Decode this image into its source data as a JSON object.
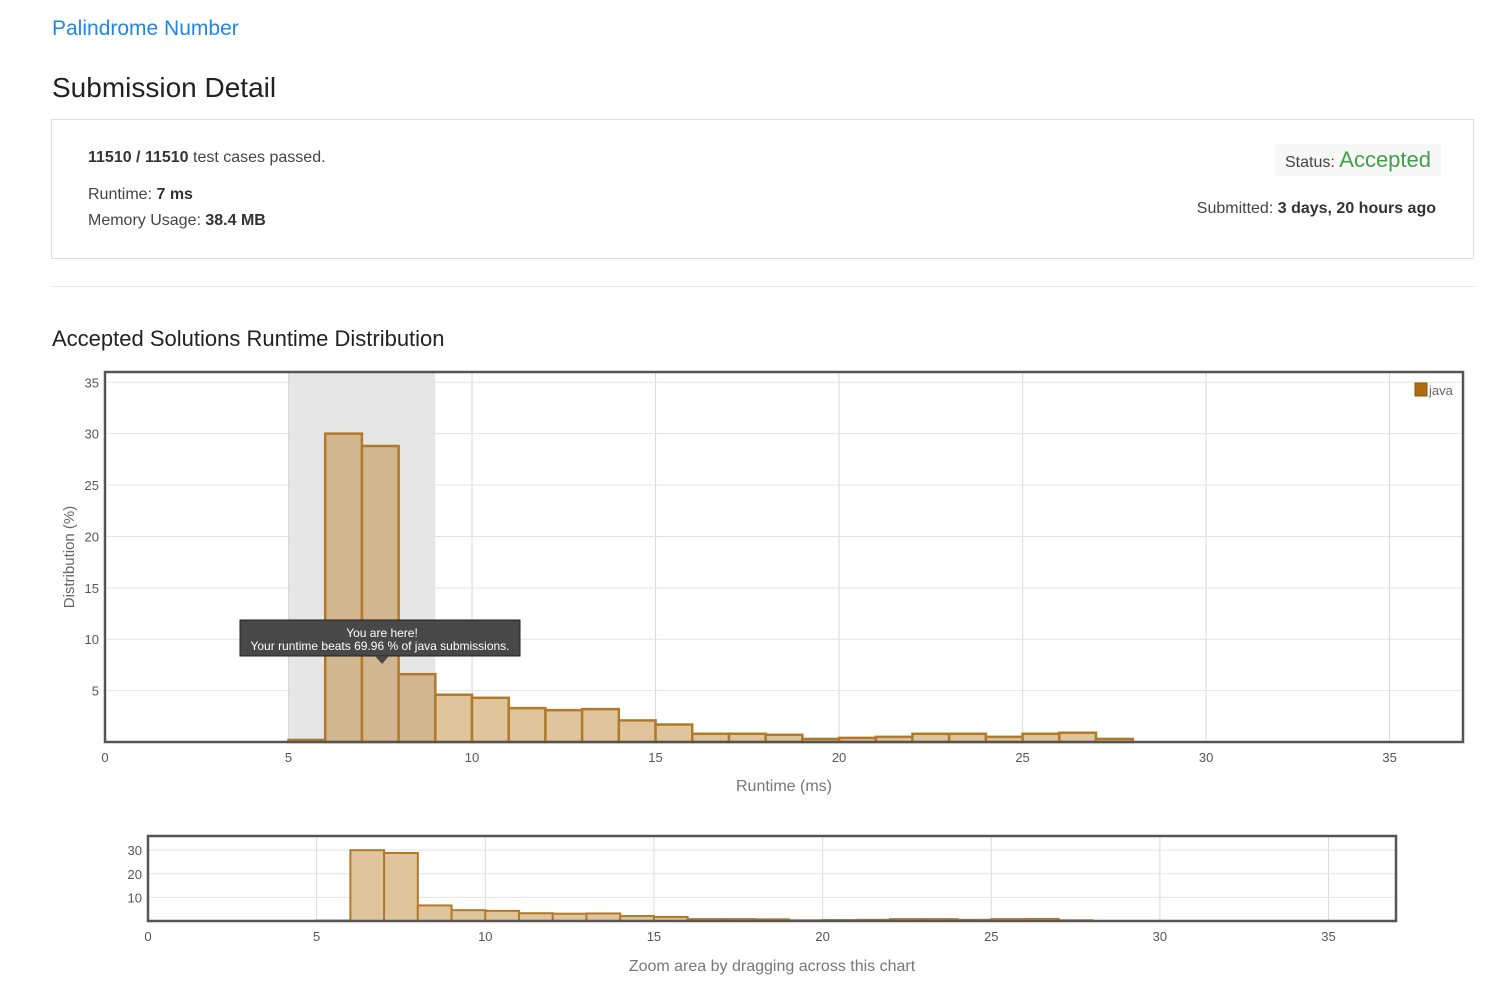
{
  "problem_title": "Palindrome Number",
  "page_title": "Submission Detail",
  "summary": {
    "passed": "11510 / 11510",
    "passed_suffix": "test cases passed.",
    "runtime_label": "Runtime:",
    "runtime_value": "7 ms",
    "memory_label": "Memory Usage:",
    "memory_value": "38.4 MB",
    "status_label": "Status:",
    "status_value": "Accepted",
    "submitted_label": "Submitted:",
    "submitted_value": "3 days, 20 hours ago"
  },
  "colors": {
    "link": "#1e88e5",
    "accepted": "#43a047",
    "bar_fill": "#dfc49c",
    "bar_stroke": "#b07a2a",
    "highlight": "#e6e6e6",
    "legend_swatch": "#b06d10"
  },
  "section_title": "Accepted Solutions Runtime Distribution",
  "chart_data": [
    {
      "type": "bar",
      "x": [
        5,
        6,
        7,
        8,
        9,
        10,
        11,
        12,
        13,
        14,
        15,
        16,
        17,
        18,
        19,
        20,
        21,
        22,
        23,
        24,
        25,
        26,
        27
      ],
      "values": [
        0.2,
        30.0,
        28.8,
        6.6,
        4.6,
        4.3,
        3.3,
        3.1,
        3.2,
        2.1,
        1.7,
        0.8,
        0.8,
        0.7,
        0.3,
        0.4,
        0.5,
        0.8,
        0.8,
        0.5,
        0.8,
        0.9,
        0.3
      ],
      "xlabel": "Runtime (ms)",
      "ylabel": "Distribution (%)",
      "xlim": [
        0,
        37
      ],
      "ylim": [
        0,
        36
      ],
      "xticks": [
        0,
        5,
        10,
        15,
        20,
        25,
        30,
        35
      ],
      "yticks": [
        5,
        10,
        15,
        20,
        25,
        30,
        35
      ],
      "grid": true,
      "legend": "top-right",
      "series": [
        {
          "name": "java"
        }
      ],
      "highlight_range": [
        5,
        9
      ],
      "highlight_bins": [
        6,
        7,
        8
      ],
      "tooltip": {
        "title": "You are here!",
        "text": "Your runtime beats 69.96 % of java submissions."
      }
    },
    {
      "type": "bar",
      "x": [
        5,
        6,
        7,
        8,
        9,
        10,
        11,
        12,
        13,
        14,
        15,
        16,
        17,
        18,
        19,
        20,
        21,
        22,
        23,
        24,
        25,
        26,
        27
      ],
      "values": [
        0.2,
        30.0,
        28.8,
        6.6,
        4.6,
        4.3,
        3.3,
        3.1,
        3.2,
        2.1,
        1.7,
        0.8,
        0.8,
        0.7,
        0.3,
        0.4,
        0.5,
        0.8,
        0.8,
        0.5,
        0.8,
        0.9,
        0.3
      ],
      "xlabel": "Zoom area by dragging across this chart",
      "xlim": [
        0,
        37
      ],
      "ylim": [
        0,
        36
      ],
      "xticks": [
        0,
        5,
        10,
        15,
        20,
        25,
        30,
        35
      ],
      "yticks": [
        10,
        20,
        30
      ],
      "grid": true
    }
  ]
}
